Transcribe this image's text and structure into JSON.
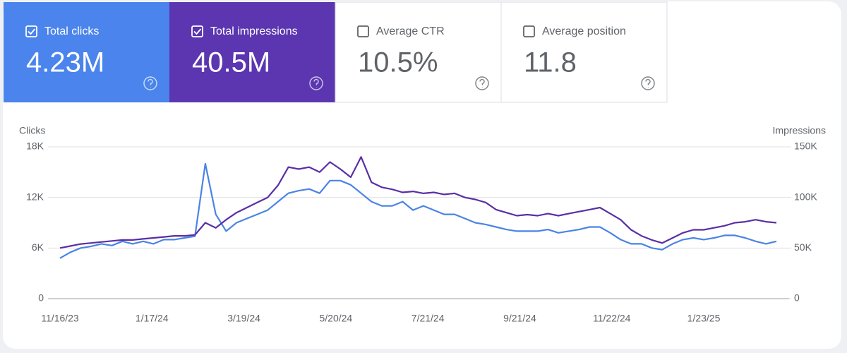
{
  "cards": [
    {
      "label": "Total clicks",
      "value": "4.23M",
      "selected": true,
      "color": "#4a84ec"
    },
    {
      "label": "Total impressions",
      "value": "40.5M",
      "selected": true,
      "color": "#5b36b0"
    },
    {
      "label": "Average CTR",
      "value": "10.5%",
      "selected": false,
      "color": "#ffffff"
    },
    {
      "label": "Average position",
      "value": "11.8",
      "selected": false,
      "color": "#ffffff"
    }
  ],
  "chart_data": {
    "type": "line",
    "y_label": "Clicks",
    "y2_label": "Impressions",
    "x": [
      "11/16/23",
      "11/23/23",
      "11/30/23",
      "12/7/23",
      "12/14/23",
      "12/21/23",
      "12/28/23",
      "1/4/24",
      "1/11/24",
      "1/18/24",
      "1/25/24",
      "2/1/24",
      "2/8/24",
      "2/15/24",
      "2/22/24",
      "2/29/24",
      "3/7/24",
      "3/14/24",
      "3/21/24",
      "3/28/24",
      "4/4/24",
      "4/11/24",
      "4/18/24",
      "4/25/24",
      "5/2/24",
      "5/9/24",
      "5/16/24",
      "5/23/24",
      "5/30/24",
      "6/6/24",
      "6/13/24",
      "6/20/24",
      "6/27/24",
      "7/4/24",
      "7/11/24",
      "7/18/24",
      "7/25/24",
      "8/1/24",
      "8/8/24",
      "8/15/24",
      "8/22/24",
      "8/29/24",
      "9/5/24",
      "9/12/24",
      "9/19/24",
      "9/26/24",
      "10/3/24",
      "10/10/24",
      "10/17/24",
      "10/24/24",
      "10/31/24",
      "11/7/24",
      "11/14/24",
      "11/21/24",
      "11/28/24",
      "12/5/24",
      "12/12/24",
      "12/19/24",
      "12/26/24",
      "1/2/25",
      "1/9/25",
      "1/16/25",
      "1/23/25",
      "1/30/25",
      "2/6/25",
      "2/13/25",
      "2/20/25",
      "2/27/25",
      "3/6/25",
      "3/13/25"
    ],
    "xticks": [
      "11/16/23",
      "1/17/24",
      "3/19/24",
      "5/20/24",
      "7/21/24",
      "9/21/24",
      "11/22/24",
      "1/23/25"
    ],
    "series": [
      {
        "name": "Clicks",
        "color": "#4a84e4",
        "values": [
          4800,
          5500,
          6000,
          6200,
          6500,
          6300,
          6800,
          6500,
          6800,
          6500,
          7000,
          7000,
          7200,
          7400,
          16000,
          10000,
          8000,
          9000,
          9500,
          10000,
          10500,
          11500,
          12500,
          12800,
          13000,
          12500,
          14000,
          14000,
          13500,
          12500,
          11500,
          11000,
          11000,
          11500,
          10500,
          11000,
          10500,
          10000,
          10000,
          9500,
          9000,
          8800,
          8500,
          8200,
          8000,
          8000,
          8000,
          8200,
          7800,
          8000,
          8200,
          8500,
          8500,
          7800,
          7000,
          6500,
          6500,
          6000,
          5800,
          6500,
          7000,
          7200,
          7000,
          7200,
          7500,
          7500,
          7200,
          6800,
          6500,
          6800
        ]
      },
      {
        "name": "Impressions",
        "axis": "y2",
        "color": "#5a2ea6",
        "values": [
          50000,
          52000,
          54000,
          55000,
          56000,
          57000,
          58000,
          58000,
          59000,
          60000,
          61000,
          62000,
          62000,
          63000,
          75000,
          70000,
          78000,
          85000,
          90000,
          95000,
          100000,
          112000,
          130000,
          128000,
          130000,
          125000,
          135000,
          128000,
          120000,
          140000,
          115000,
          110000,
          108000,
          105000,
          106000,
          104000,
          105000,
          103000,
          104000,
          100000,
          98000,
          95000,
          88000,
          85000,
          82000,
          83000,
          82000,
          84000,
          82000,
          84000,
          86000,
          88000,
          90000,
          84000,
          78000,
          68000,
          62000,
          58000,
          55000,
          60000,
          65000,
          68000,
          68000,
          70000,
          72000,
          75000,
          76000,
          78000,
          76000,
          75000
        ]
      }
    ],
    "ylim": [
      0,
      18000
    ],
    "yticks": [
      0,
      {
        "value": 6000,
        "label": "6K"
      },
      {
        "value": 12000,
        "label": "12K"
      },
      {
        "value": 18000,
        "label": "18K"
      }
    ],
    "y2lim": [
      0,
      150000
    ],
    "y2ticks": [
      0,
      {
        "value": 50000,
        "label": "50K"
      },
      {
        "value": 100000,
        "label": "100K"
      },
      {
        "value": 150000,
        "label": "150K"
      }
    ],
    "grid": true
  }
}
